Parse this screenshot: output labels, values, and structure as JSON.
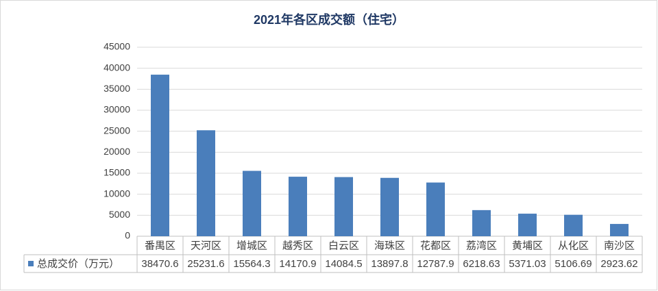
{
  "chart_data": {
    "type": "bar",
    "title": "2021年各区成交额（住宅）",
    "categories": [
      "番禺区",
      "天河区",
      "增城区",
      "越秀区",
      "白云区",
      "海珠区",
      "花都区",
      "荔湾区",
      "黄埔区",
      "从化区",
      "南沙区"
    ],
    "series": [
      {
        "name": "总成交价（万元）",
        "color": "#4a7ebb",
        "values": [
          38470.6,
          25231.6,
          15564.3,
          14170.9,
          14084.5,
          13897.8,
          12787.9,
          6218.63,
          5371.03,
          5106.69,
          2923.62
        ]
      }
    ],
    "ylim": [
      0,
      45000
    ],
    "yticks": [
      0,
      5000,
      10000,
      15000,
      20000,
      25000,
      30000,
      35000,
      40000,
      45000
    ],
    "grid": true
  }
}
